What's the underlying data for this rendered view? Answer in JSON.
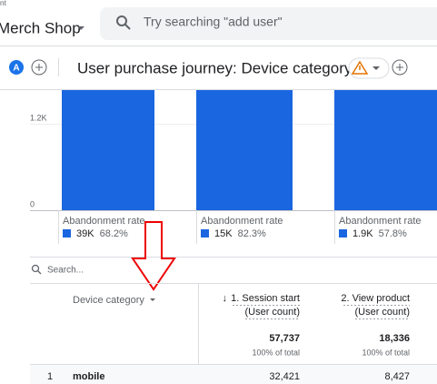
{
  "header": {
    "account": "nt",
    "property": "Merch Shop",
    "search_placeholder": "Try searching \"add user\""
  },
  "toolbar": {
    "avatar": "A",
    "title": "User purchase journey: Device category"
  },
  "chart": {
    "y_labels": [
      "1.2K",
      "0"
    ],
    "steps": [
      {
        "label": "Abandonment rate",
        "count": "39K",
        "rate": "68.2%"
      },
      {
        "label": "Abandonment rate",
        "count": "15K",
        "rate": "82.3%"
      },
      {
        "label": "Abandonment rate",
        "count": "1.9K",
        "rate": "57.8%"
      }
    ]
  },
  "table": {
    "search_placeholder": "Search...",
    "columns": [
      {
        "name": "Device category"
      },
      {
        "sort": "↓",
        "name": "1. Session start",
        "sub": "(User count)"
      },
      {
        "name": "2. View product",
        "sub": "(User count)"
      }
    ],
    "totals": [
      {
        "value": "57,737",
        "share": "100% of total"
      },
      {
        "value": "18,336",
        "share": "100% of total"
      }
    ],
    "rows": [
      [
        "1",
        "mobile",
        "32,421",
        "8,427"
      ]
    ]
  }
}
